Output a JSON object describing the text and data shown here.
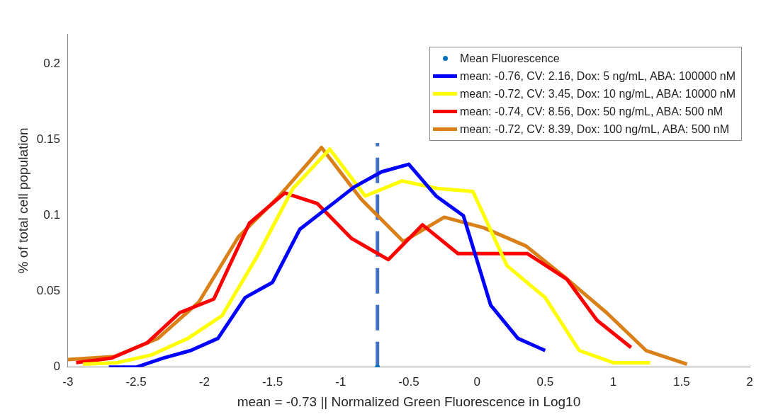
{
  "chart_data": {
    "type": "line",
    "xlabel": "mean = -0.73 || Normalized Green Fluorescence in Log10",
    "ylabel": "% of total cell population",
    "xlim": [
      -3,
      2
    ],
    "xticks": [
      -3,
      -2.5,
      -2,
      -1.5,
      -1,
      -0.5,
      0,
      0.5,
      1,
      1.5,
      2
    ],
    "ylim": [
      0,
      0.22
    ],
    "yticks": [
      0,
      0.05,
      0.1,
      0.15,
      0.2
    ],
    "legend": "top right",
    "marker": "none",
    "series": [
      {
        "name": "Mean Fluorescence",
        "type": "scatter",
        "marker": "circle",
        "color": "#0072bd",
        "x": [
          -0.73
        ],
        "values": [
          0
        ]
      },
      {
        "name": "mean: -0.76, CV: 2.16, Dox: 5 ng/mL, ABA: 100000 nM",
        "color": "#0000ff",
        "x": [
          -2.7,
          -2.5,
          -2.3,
          -2.1,
          -1.9,
          -1.7,
          -1.5,
          -1.3,
          -1.1,
          -0.9,
          -0.7,
          -0.5,
          -0.3,
          -0.1,
          0.1,
          0.3,
          0.5
        ],
        "values": [
          0,
          0,
          0.006,
          0.011,
          0.019,
          0.046,
          0.056,
          0.091,
          0.105,
          0.119,
          0.129,
          0.134,
          0.113,
          0.1,
          0.041,
          0.019,
          0.011
        ]
      },
      {
        "name": "mean: -0.72, CV: 3.45, Dox: 10 ng/mL, ABA: 10000 nM",
        "color": "#ffff00",
        "x": [
          -2.89,
          -2.64,
          -2.39,
          -2.12,
          -1.87,
          -1.62,
          -1.35,
          -1.08,
          -0.82,
          -0.55,
          -0.29,
          -0.03,
          0.22,
          0.5,
          0.75,
          1,
          1.27
        ],
        "values": [
          0.002,
          0.003,
          0.008,
          0.019,
          0.034,
          0.072,
          0.118,
          0.144,
          0.113,
          0.123,
          0.118,
          0.116,
          0.067,
          0.046,
          0.011,
          0.003,
          0.003
        ]
      },
      {
        "name": "mean: -0.74, CV: 8.56, Dox: 50 ng/mL, ABA: 500 nM",
        "color": "#ff0000",
        "x": [
          -2.94,
          -2.68,
          -2.42,
          -2.18,
          -1.93,
          -1.67,
          -1.41,
          -1.17,
          -0.92,
          -0.65,
          -0.4,
          -0.14,
          0.12,
          0.37,
          0.66,
          0.88,
          1.13
        ],
        "values": [
          0.003,
          0.006,
          0.016,
          0.036,
          0.045,
          0.095,
          0.115,
          0.108,
          0.085,
          0.071,
          0.094,
          0.075,
          0.075,
          0.075,
          0.058,
          0.031,
          0.013
        ]
      },
      {
        "name": "mean: -0.72, CV: 8.39, Dox: 100 ng/mL, ABA: 500 nM",
        "color": "#d98019",
        "x": [
          -3,
          -2.66,
          -2.34,
          -2.04,
          -1.75,
          -1.45,
          -1.14,
          -0.85,
          -0.54,
          -0.24,
          0.05,
          0.36,
          0.65,
          0.95,
          1.24,
          1.54
        ],
        "values": [
          0.005,
          0.007,
          0.019,
          0.043,
          0.086,
          0.113,
          0.145,
          0.111,
          0.083,
          0.099,
          0.092,
          0.08,
          0.059,
          0.036,
          0.011,
          0.002
        ]
      },
      {
        "type": "line",
        "line_style": "dashed",
        "color": "#4472c4",
        "x": [
          -0.73,
          -0.73
        ],
        "values": [
          0,
          0.148
        ]
      }
    ]
  }
}
